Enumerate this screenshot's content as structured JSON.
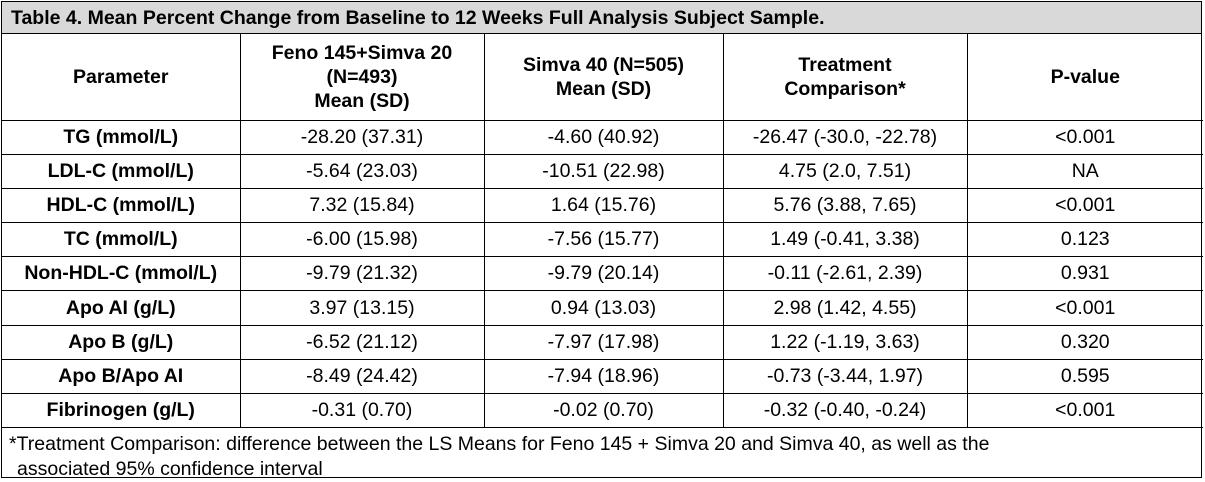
{
  "table": {
    "title": "Table 4. Mean Percent Change from Baseline to 12 Weeks Full Analysis Subject Sample.",
    "headers": [
      [
        "Parameter"
      ],
      [
        "Feno 145+Simva 20",
        "(N=493)",
        "Mean (SD)"
      ],
      [
        "Simva 40 (N=505)",
        "Mean (SD)"
      ],
      [
        "Treatment",
        "Comparison*"
      ],
      [
        "P-value"
      ]
    ],
    "rows": [
      [
        "TG (mmol/L)",
        "-28.20 (37.31)",
        "-4.60 (40.92)",
        "-26.47 (-30.0, -22.78)",
        "<0.001"
      ],
      [
        "LDL-C (mmol/L)",
        "-5.64 (23.03)",
        "-10.51 (22.98)",
        "4.75 (2.0, 7.51)",
        "NA"
      ],
      [
        "HDL-C (mmol/L)",
        "7.32 (15.84)",
        "1.64 (15.76)",
        "5.76 (3.88, 7.65)",
        "<0.001"
      ],
      [
        "TC (mmol/L)",
        "-6.00 (15.98)",
        "-7.56 (15.77)",
        "1.49 (-0.41, 3.38)",
        "0.123"
      ],
      [
        "Non-HDL-C (mmol/L)",
        "-9.79 (21.32)",
        "-9.79 (20.14)",
        "-0.11 (-2.61, 2.39)",
        "0.931"
      ],
      [
        "Apo AI (g/L)",
        "3.97 (13.15)",
        "0.94 (13.03)",
        "2.98 (1.42, 4.55)",
        "<0.001"
      ],
      [
        "Apo B (g/L)",
        "-6.52 (21.12)",
        "-7.97 (17.98)",
        "1.22 (-1.19, 3.63)",
        "0.320"
      ],
      [
        "Apo B/Apo AI",
        "-8.49 (24.42)",
        "-7.94 (18.96)",
        "-0.73 (-3.44, 1.97)",
        "0.595"
      ],
      [
        "Fibrinogen (g/L)",
        "-0.31 (0.70)",
        "-0.02 (0.70)",
        "-0.32 (-0.40, -0.24)",
        "<0.001"
      ]
    ],
    "footnote": [
      "*Treatment Comparison: difference between the LS Means for Feno 145 + Simva 20 and Simva 40, as well as the",
      "associated 95% confidence interval"
    ]
  }
}
